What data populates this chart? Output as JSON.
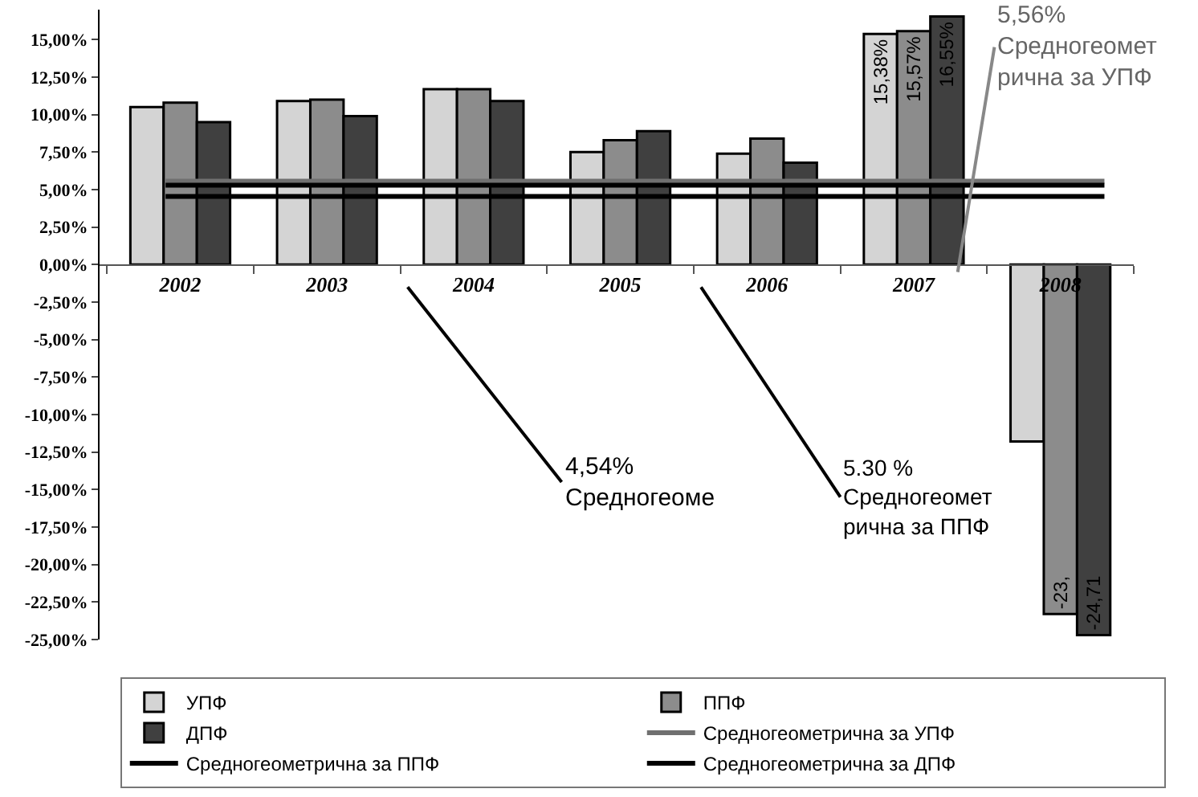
{
  "chart_data": {
    "type": "bar",
    "categories": [
      "2002",
      "2003",
      "2004",
      "2005",
      "2006",
      "2007",
      "2008"
    ],
    "series": [
      {
        "name": "УПФ",
        "color": "#d4d4d4",
        "values": [
          10.5,
          10.9,
          11.7,
          7.5,
          7.4,
          15.38,
          -11.8
        ],
        "value_labels": [
          null,
          null,
          null,
          null,
          null,
          "15,38%",
          null
        ]
      },
      {
        "name": "ППФ",
        "color": "#8c8c8c",
        "values": [
          10.8,
          11.0,
          11.7,
          8.3,
          8.4,
          15.57,
          -23.3
        ],
        "value_labels": [
          null,
          null,
          null,
          null,
          null,
          "15,57%",
          "-23,"
        ]
      },
      {
        "name": "ДПФ",
        "color": "#404040",
        "values": [
          9.5,
          9.9,
          10.9,
          8.9,
          6.8,
          16.55,
          -24.71
        ],
        "value_labels": [
          null,
          null,
          null,
          null,
          null,
          "16,55%",
          "-24,71"
        ]
      }
    ],
    "ref_lines": [
      {
        "axis": "y",
        "value": 5.56,
        "label": "Средногеометрична за УПФ",
        "color": "#707070"
      },
      {
        "axis": "y",
        "value": 5.3,
        "label": "Средногеометрична за ППФ",
        "color": "#000000"
      },
      {
        "axis": "y",
        "value": 4.54,
        "label": "Средногеометрична за ДПФ",
        "color": "#000000"
      }
    ],
    "annotations": [
      "5,56%\nСредногеомет\nрична за УПФ",
      "4,54%\nСредногеоме",
      "5.30 %\nСредногеомет\nрична за ППФ"
    ],
    "ylim": [
      -25,
      17
    ],
    "yticks": [
      {
        "value": -25,
        "label": "-25,00%"
      },
      {
        "value": -22.5,
        "label": "-22,50%"
      },
      {
        "value": -20,
        "label": "-20,00%"
      },
      {
        "value": -17.5,
        "label": "-17,50%"
      },
      {
        "value": -15,
        "label": "-15,00%"
      },
      {
        "value": -12.5,
        "label": "-12,50%"
      },
      {
        "value": -10,
        "label": "-10,00%"
      },
      {
        "value": -7.5,
        "label": "-7,50%"
      },
      {
        "value": -5,
        "label": "-5,00%"
      },
      {
        "value": -2.5,
        "label": "-2,50%"
      },
      {
        "value": 0,
        "label": "0,00%"
      },
      {
        "value": 2.5,
        "label": "2,50%"
      },
      {
        "value": 5,
        "label": "5,00%"
      },
      {
        "value": 7.5,
        "label": "7,50%"
      },
      {
        "value": 10,
        "label": "10,00%"
      },
      {
        "value": 12.5,
        "label": "12,50%"
      },
      {
        "value": 15,
        "label": "15,00%"
      }
    ],
    "grid": false,
    "legend": "bottom"
  }
}
